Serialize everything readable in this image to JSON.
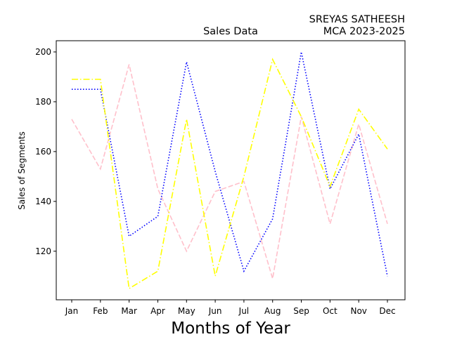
{
  "chart_data": {
    "type": "line",
    "title": "Sales Data",
    "author_line1": "SREYAS SATHEESH",
    "author_line2": "MCA 2023-2025",
    "xlabel": "Months of Year",
    "ylabel": "Sales of Segments",
    "categories": [
      "Jan",
      "Feb",
      "Mar",
      "Apr",
      "May",
      "Jun",
      "Jul",
      "Aug",
      "Sep",
      "Oct",
      "Nov",
      "Dec"
    ],
    "yticks": [
      120,
      140,
      160,
      180,
      200
    ],
    "ylim": [
      100.5,
      204.5
    ],
    "grid": false,
    "series": [
      {
        "color": "#ffc0cb",
        "style": "dashed",
        "values": [
          173,
          153,
          195,
          145,
          120,
          144,
          148,
          109,
          174,
          131,
          171,
          131
        ]
      },
      {
        "color": "#0000ff",
        "style": "dotted",
        "values": [
          185,
          185,
          126,
          134,
          196,
          152,
          112,
          133,
          200,
          145,
          167,
          110
        ]
      },
      {
        "color": "#ffff00",
        "style": "dashdot",
        "values": [
          189,
          189,
          105,
          112,
          173,
          110,
          150,
          197,
          174,
          146,
          177,
          161
        ]
      }
    ]
  }
}
